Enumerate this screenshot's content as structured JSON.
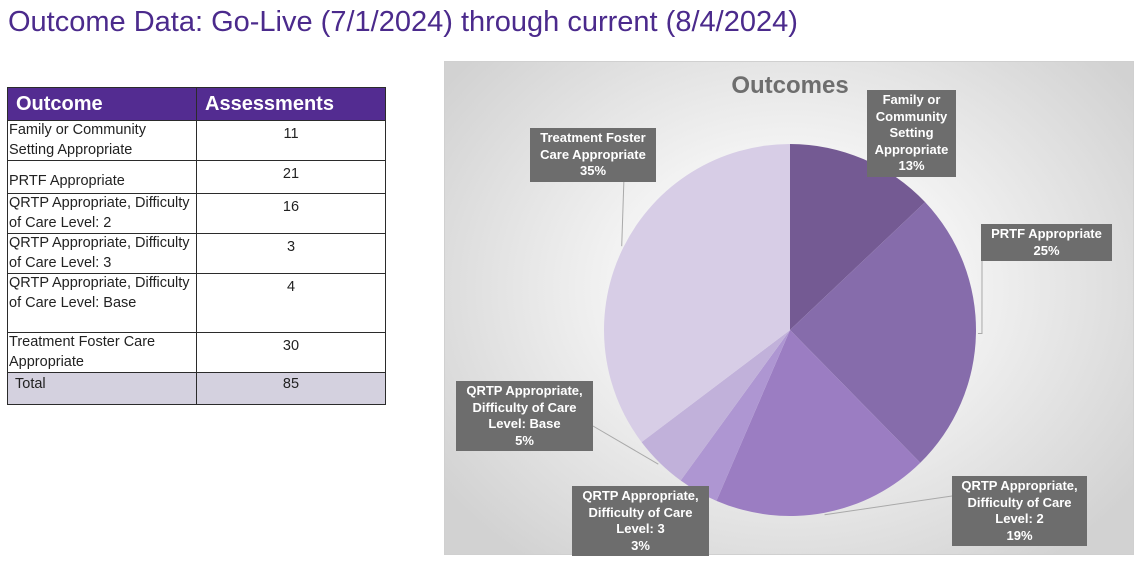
{
  "page": {
    "title": "Outcome Data: Go-Live (7/1/2024) through current (8/4/2024)"
  },
  "table": {
    "headers": [
      "Outcome",
      "Assessments"
    ],
    "rows": [
      {
        "label": "Family or Community Setting Appropriate",
        "value": "11"
      },
      {
        "label": "PRTF Appropriate",
        "value": "21"
      },
      {
        "label": "QRTP Appropriate, Difficulty of Care Level: 2",
        "value": "16"
      },
      {
        "label": "QRTP Appropriate, Difficulty of Care Level: 3",
        "value": "3"
      },
      {
        "label": "QRTP Appropriate, Difficulty of Care Level: Base",
        "value": "4"
      },
      {
        "label": "Treatment Foster Care Appropriate",
        "value": "30"
      }
    ],
    "total": {
      "label": "Total",
      "value": "85"
    }
  },
  "chart_data": {
    "type": "pie",
    "title": "Outcomes",
    "slices": [
      {
        "label": "Family or Community Setting Appropriate",
        "value": 11,
        "percent": "13%",
        "color": "#745a93"
      },
      {
        "label": "PRTF Appropriate",
        "value": 21,
        "percent": "25%",
        "color": "#866cab"
      },
      {
        "label": "QRTP Appropriate, Difficulty of Care Level: 2",
        "value": 16,
        "percent": "19%",
        "color": "#9b7dc2"
      },
      {
        "label": "QRTP Appropriate, Difficulty of Care Level: 3",
        "value": 3,
        "percent": "3%",
        "color": "#ae96d2"
      },
      {
        "label": "QRTP Appropriate, Difficulty of Care Level: Base",
        "value": 4,
        "percent": "5%",
        "color": "#c1b1da"
      },
      {
        "label": "Treatment Foster Care Appropriate",
        "value": 30,
        "percent": "35%",
        "color": "#d7cde6"
      }
    ],
    "labels_display": [
      "Family or\nCommunity\nSetting\nAppropriate\n13%",
      "PRTF Appropriate\n25%",
      "QRTP Appropriate,\nDifficulty of Care\nLevel: 2\n19%",
      "QRTP Appropriate,\nDifficulty of Care\nLevel: 3\n3%",
      "QRTP Appropriate,\nDifficulty of Care\nLevel: Base\n5%",
      "Treatment Foster\nCare Appropriate\n35%"
    ]
  }
}
